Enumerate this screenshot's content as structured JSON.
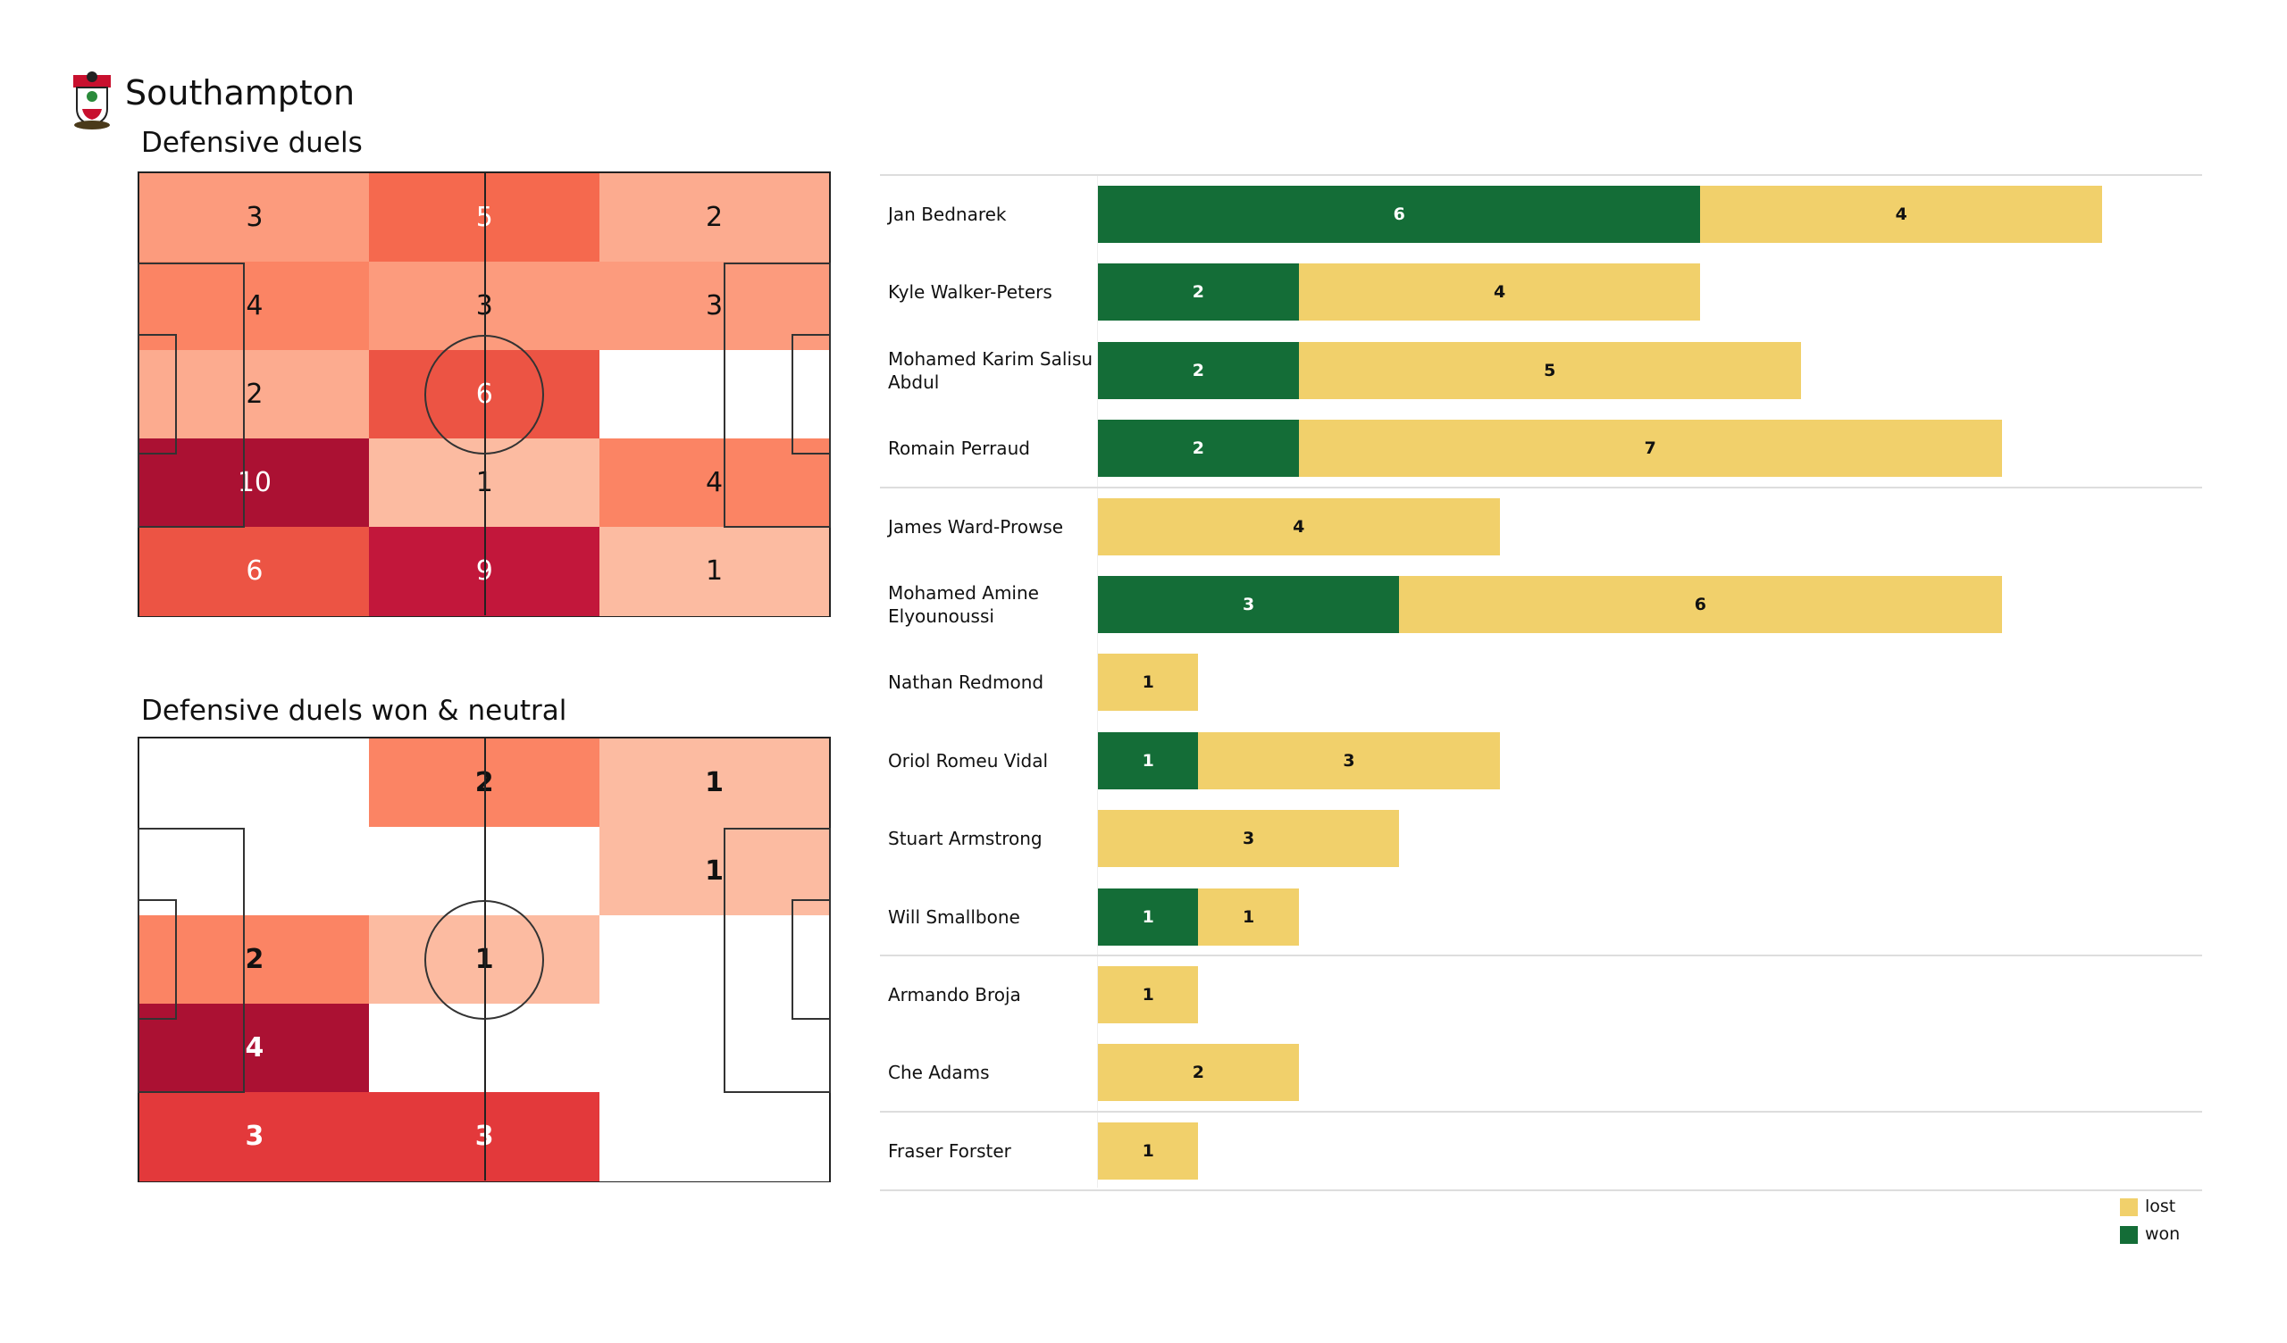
{
  "header": {
    "team": "Southampton",
    "logo_icon": "southampton-crest-icon"
  },
  "chart_data": [
    {
      "type": "heatmap",
      "title": "Defensive duels",
      "rows": 5,
      "cols": 3,
      "values": [
        [
          3,
          5,
          2
        ],
        [
          4,
          3,
          3
        ],
        [
          2,
          6,
          0
        ],
        [
          10,
          1,
          4
        ],
        [
          6,
          9,
          1
        ]
      ],
      "colors": {
        "0": "#ffffff",
        "1": "#fcbba1",
        "2": "#fcab8f",
        "3": "#fc9b7d",
        "4": "#fb8464",
        "5": "#f5694e",
        "6": "#ec5444",
        "9": "#c2173b",
        "10": "#ab1133"
      },
      "bold": false
    },
    {
      "type": "heatmap",
      "title": "Defensive duels won & neutral",
      "rows": 5,
      "cols": 3,
      "values": [
        [
          0,
          2,
          1
        ],
        [
          0,
          0,
          1
        ],
        [
          2,
          1,
          0
        ],
        [
          4,
          0,
          0
        ],
        [
          3,
          3,
          0
        ]
      ],
      "colors": {
        "0": "#ffffff",
        "1": "#fcbba1",
        "2": "#fb8464",
        "3": "#e3393b",
        "4": "#ab1133"
      },
      "bold": true
    },
    {
      "type": "bar",
      "stacked": true,
      "orientation": "horizontal",
      "players": [
        "Jan Bednarek",
        "Kyle Walker-Peters",
        "Mohamed Karim Salisu Abdul",
        "Romain Perraud",
        "James  Ward-Prowse",
        "Mohamed Amine Elyounoussi",
        "Nathan Redmond",
        "Oriol Romeu Vidal",
        "Stuart Armstrong",
        "Will Smallbone",
        "Armando Broja",
        "Che Adams",
        "Fraser Forster"
      ],
      "series": [
        {
          "name": "won",
          "color": "#146d37",
          "values": [
            6,
            2,
            2,
            2,
            0,
            3,
            0,
            1,
            0,
            1,
            0,
            0,
            0
          ]
        },
        {
          "name": "lost",
          "color": "#f1d06b",
          "values": [
            4,
            4,
            5,
            7,
            4,
            6,
            1,
            3,
            3,
            1,
            1,
            2,
            1
          ]
        }
      ],
      "group_separators_after": [
        3,
        9,
        11,
        12
      ],
      "legend": [
        "lost",
        "won"
      ],
      "legend_position": "bottom-right"
    }
  ]
}
